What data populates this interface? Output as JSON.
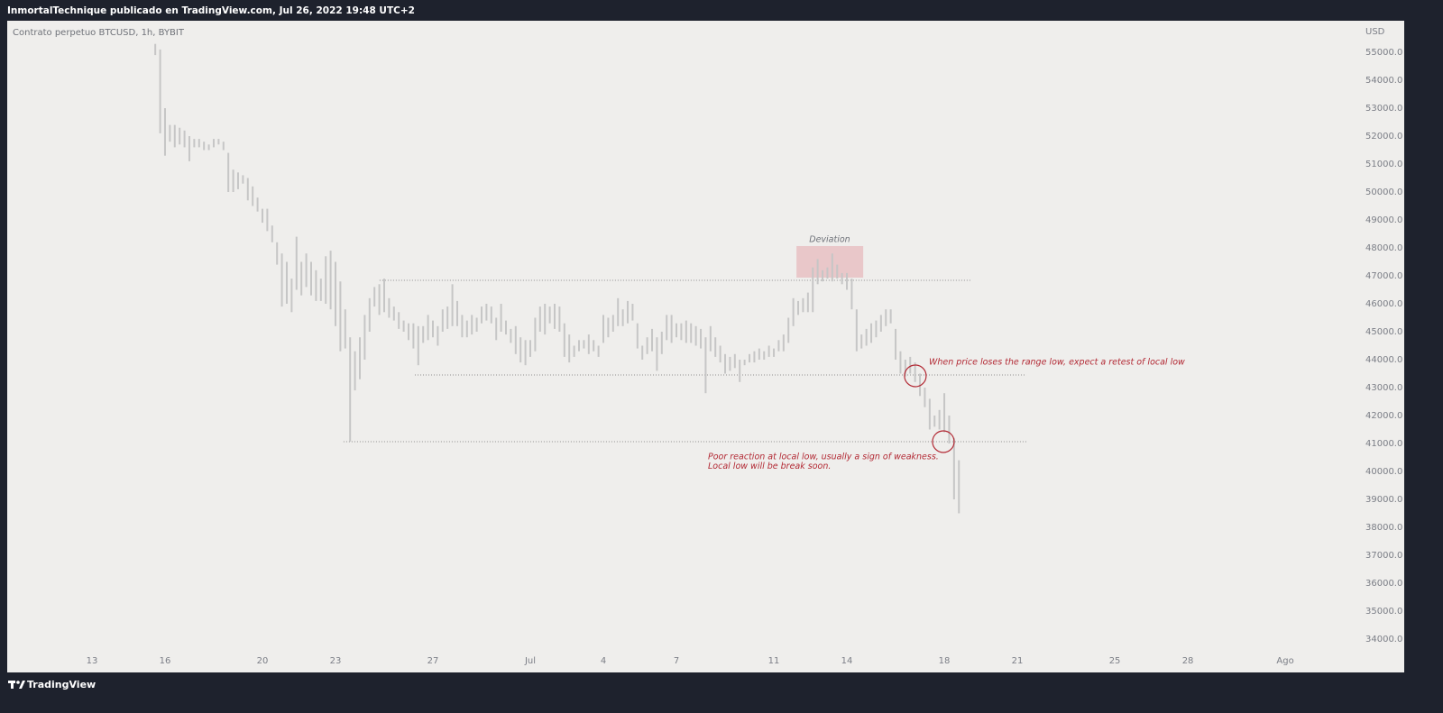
{
  "header": {
    "text": "InmortalTechnique publicado en TradingView.com, Jul 26, 2022 19:48 UTC+2"
  },
  "footer": {
    "brand": "TradingView"
  },
  "chart_data": {
    "type": "range-bar",
    "title": "Contrato perpetuo BTCUSD, 1h, BYBIT",
    "y_unit": "USD",
    "color": "#c6c6c6",
    "xlim": [
      -3.48,
      51.96
    ],
    "ylim": [
      32806,
      56129
    ],
    "xticks": [
      {
        "value": 0,
        "label": "13"
      },
      {
        "value": 3,
        "label": "16"
      },
      {
        "value": 7,
        "label": "20"
      },
      {
        "value": 10,
        "label": "23"
      },
      {
        "value": 14,
        "label": "27"
      },
      {
        "value": 18,
        "label": "Jul"
      },
      {
        "value": 21,
        "label": "4"
      },
      {
        "value": 24,
        "label": "7"
      },
      {
        "value": 28,
        "label": "11"
      },
      {
        "value": 31,
        "label": "14"
      },
      {
        "value": 35,
        "label": "18"
      },
      {
        "value": 38,
        "label": "21"
      },
      {
        "value": 42,
        "label": "25"
      },
      {
        "value": 45,
        "label": "28"
      },
      {
        "value": 49,
        "label": "Ago"
      }
    ],
    "yticks": [
      {
        "value": 55000,
        "label": "55000.0"
      },
      {
        "value": 54000,
        "label": "54000.0"
      },
      {
        "value": 53000,
        "label": "53000.0"
      },
      {
        "value": 52000,
        "label": "52000.0"
      },
      {
        "value": 51000,
        "label": "51000.0"
      },
      {
        "value": 50000,
        "label": "50000.0"
      },
      {
        "value": 49000,
        "label": "49000.0"
      },
      {
        "value": 48000,
        "label": "48000.0"
      },
      {
        "value": 47000,
        "label": "47000.0"
      },
      {
        "value": 46000,
        "label": "46000.0"
      },
      {
        "value": 45000,
        "label": "45000.0"
      },
      {
        "value": 44000,
        "label": "44000.0"
      },
      {
        "value": 43000,
        "label": "43000.0"
      },
      {
        "value": 42000,
        "label": "42000.0"
      },
      {
        "value": 41000,
        "label": "41000.0"
      },
      {
        "value": 40000,
        "label": "40000.0"
      },
      {
        "value": 39000,
        "label": "39000.0"
      },
      {
        "value": 38000,
        "label": "38000.0"
      },
      {
        "value": 37000,
        "label": "37000.0"
      },
      {
        "value": 36000,
        "label": "36000.0"
      },
      {
        "value": 35000,
        "label": "35000.0"
      },
      {
        "value": 34000,
        "label": "34000.0"
      }
    ],
    "x": [
      2.6,
      2.8,
      3.0,
      3.2,
      3.4,
      3.6,
      3.8,
      4.0,
      4.2,
      4.4,
      4.6,
      4.8,
      5.0,
      5.2,
      5.4,
      5.6,
      5.8,
      6.0,
      6.2,
      6.4,
      6.6,
      6.8,
      7.0,
      7.2,
      7.4,
      7.6,
      7.8,
      8.0,
      8.2,
      8.4,
      8.6,
      8.8,
      9.0,
      9.2,
      9.4,
      9.6,
      9.8,
      10.0,
      10.2,
      10.4,
      10.6,
      10.8,
      11.0,
      11.2,
      11.4,
      11.6,
      11.8,
      12.0,
      12.2,
      12.4,
      12.6,
      12.8,
      13.0,
      13.2,
      13.4,
      13.6,
      13.8,
      14.0,
      14.2,
      14.4,
      14.6,
      14.8,
      15.0,
      15.2,
      15.4,
      15.6,
      15.8,
      16.0,
      16.2,
      16.4,
      16.6,
      16.8,
      17.0,
      17.2,
      17.4,
      17.6,
      17.8,
      18.0,
      18.2,
      18.4,
      18.6,
      18.8,
      19.0,
      19.2,
      19.4,
      19.6,
      19.8,
      20.0,
      20.2,
      20.4,
      20.6,
      20.8,
      21.0,
      21.2,
      21.4,
      21.6,
      21.8,
      22.0,
      22.2,
      22.4,
      22.6,
      22.8,
      23.0,
      23.2,
      23.4,
      23.6,
      23.8,
      24.0,
      24.2,
      24.4,
      24.6,
      24.8,
      25.0,
      25.2,
      25.4,
      25.6,
      25.8,
      26.0,
      26.2,
      26.4,
      26.6,
      26.8,
      27.0,
      27.2,
      27.4,
      27.6,
      27.8,
      28.0,
      28.2,
      28.4,
      28.6,
      28.8,
      29.0,
      29.2,
      29.4,
      29.6,
      29.8,
      30.0,
      30.2,
      30.4,
      30.6,
      30.8,
      31.0,
      31.2,
      31.4,
      31.6,
      31.8,
      32.0,
      32.2,
      32.4,
      32.6,
      32.8,
      33.0,
      33.2,
      33.4,
      33.6,
      33.8,
      34.0,
      34.2,
      34.4,
      34.6,
      34.8,
      35.0,
      35.2,
      35.4,
      35.6
    ],
    "high": [
      55300,
      55100,
      53000,
      52400,
      52400,
      52300,
      52200,
      52000,
      51900,
      51900,
      51800,
      51700,
      51900,
      51900,
      51800,
      51400,
      50800,
      50700,
      50600,
      50500,
      50200,
      49800,
      49400,
      49400,
      48800,
      48200,
      47800,
      47500,
      46900,
      48400,
      47500,
      47800,
      47500,
      47200,
      46900,
      47700,
      47900,
      47500,
      46800,
      45800,
      44800,
      44300,
      44800,
      45600,
      46200,
      46600,
      46700,
      46900,
      46200,
      45900,
      45700,
      45400,
      45300,
      45300,
      45200,
      45200,
      45600,
      45400,
      45200,
      45800,
      45900,
      46700,
      46100,
      45600,
      45400,
      45600,
      45500,
      45900,
      46000,
      45900,
      45500,
      46000,
      45400,
      45100,
      45200,
      44800,
      44700,
      44700,
      45500,
      45900,
      46000,
      45900,
      46000,
      45900,
      45300,
      44900,
      44500,
      44700,
      44700,
      44900,
      44700,
      44500,
      45600,
      45500,
      45600,
      46200,
      45800,
      46100,
      46000,
      45300,
      44500,
      44800,
      45100,
      44800,
      45000,
      45600,
      45600,
      45300,
      45300,
      45400,
      45300,
      45200,
      45100,
      44800,
      45200,
      44800,
      44500,
      44200,
      44100,
      44200,
      44000,
      44000,
      44200,
      44300,
      44400,
      44300,
      44500,
      44400,
      44700,
      44900,
      45500,
      46200,
      46100,
      46200,
      46400,
      47300,
      47600,
      47200,
      47300,
      47800,
      47400,
      47100,
      47100,
      46900,
      45800,
      44900,
      45100,
      45300,
      45400,
      45600,
      45800,
      45800,
      45100,
      44300,
      44000,
      44100,
      43900,
      43500,
      43000,
      42600,
      42000,
      42200,
      42800,
      42000,
      41200,
      40400
    ],
    "low": [
      54900,
      52100,
      51300,
      51800,
      51600,
      51700,
      51600,
      51100,
      51600,
      51600,
      51500,
      51500,
      51600,
      51700,
      51500,
      50000,
      50000,
      50100,
      50300,
      49700,
      49500,
      49300,
      48900,
      48600,
      48200,
      47400,
      45900,
      46000,
      45700,
      46500,
      46300,
      46600,
      46300,
      46100,
      46100,
      46000,
      45800,
      45200,
      44300,
      44400,
      41070,
      42900,
      43300,
      44000,
      45000,
      45900,
      45600,
      45700,
      45500,
      45400,
      45100,
      45000,
      44700,
      44400,
      43800,
      44600,
      44700,
      44800,
      44500,
      45000,
      45100,
      45200,
      45200,
      44800,
      44800,
      44900,
      45000,
      45300,
      45400,
      45300,
      44700,
      45000,
      44900,
      44600,
      44200,
      43900,
      43800,
      44100,
      44300,
      45000,
      44900,
      45300,
      45100,
      45000,
      44100,
      43900,
      44100,
      44300,
      44400,
      44200,
      44300,
      44100,
      44600,
      44800,
      45000,
      45200,
      45200,
      45300,
      45400,
      44400,
      44000,
      44200,
      44300,
      43600,
      44200,
      44700,
      44600,
      44800,
      44700,
      44600,
      44600,
      44500,
      44400,
      42800,
      44300,
      44100,
      43900,
      43500,
      43600,
      43700,
      43200,
      43800,
      43900,
      43900,
      44000,
      44000,
      44100,
      44100,
      44300,
      44300,
      44600,
      45200,
      45600,
      45700,
      45700,
      45700,
      46700,
      46800,
      46900,
      46800,
      46900,
      46700,
      46500,
      45800,
      44300,
      44400,
      44500,
      44600,
      44800,
      45000,
      45200,
      45300,
      44000,
      43500,
      43400,
      43500,
      43200,
      42700,
      42300,
      41500,
      41600,
      41500,
      41400,
      41000,
      39000,
      38500
    ],
    "levels": [
      {
        "y": 46840,
        "x": [
          11.81,
          36.11
        ]
      },
      {
        "y": 43450,
        "x": [
          13.26,
          38.37
        ]
      },
      {
        "y": 41065,
        "x": [
          10.33,
          38.37
        ]
      }
    ],
    "box": {
      "x": [
        28.93,
        31.67
      ],
      "y": [
        46935,
        48065
      ]
    },
    "circles": [
      {
        "x": 33.81,
        "y": 43420
      },
      {
        "x": 34.96,
        "y": 41065
      }
    ],
    "annotations": [
      {
        "lines": [
          "Deviation"
        ]
      },
      {
        "lines": [
          "When price loses the range low, expect a retest of local low"
        ]
      },
      {
        "lines": [
          "Poor reaction at local low, usually a sign of weakness.",
          "Local low will be break soon."
        ]
      }
    ]
  }
}
